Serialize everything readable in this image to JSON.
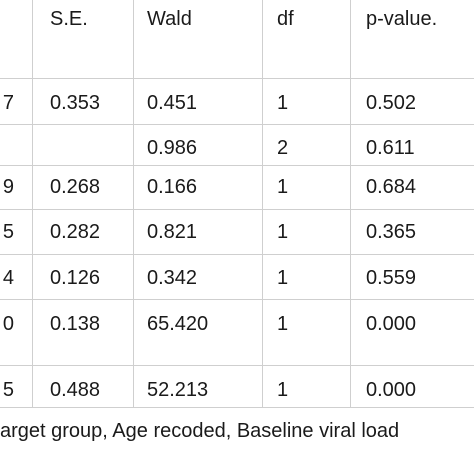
{
  "table": {
    "headers": [
      "",
      "S.E.",
      "Wald",
      "df",
      "p-value."
    ],
    "rows": [
      [
        "7",
        "0.353",
        "0.451",
        "1",
        "0.502"
      ],
      [
        "",
        "",
        "0.986",
        "2",
        "0.611"
      ],
      [
        "9",
        "0.268",
        "0.166",
        "1",
        "0.684"
      ],
      [
        "5",
        "0.282",
        "0.821",
        "1",
        "0.365"
      ],
      [
        "4",
        "0.126",
        "0.342",
        "1",
        "0.559"
      ],
      [
        "0",
        "0.138",
        "65.420",
        "1",
        "0.000"
      ],
      [
        "5",
        "0.488",
        "52.213",
        "1",
        "0.000"
      ]
    ]
  },
  "footnote": "arget group, Age recoded, Baseline viral load"
}
